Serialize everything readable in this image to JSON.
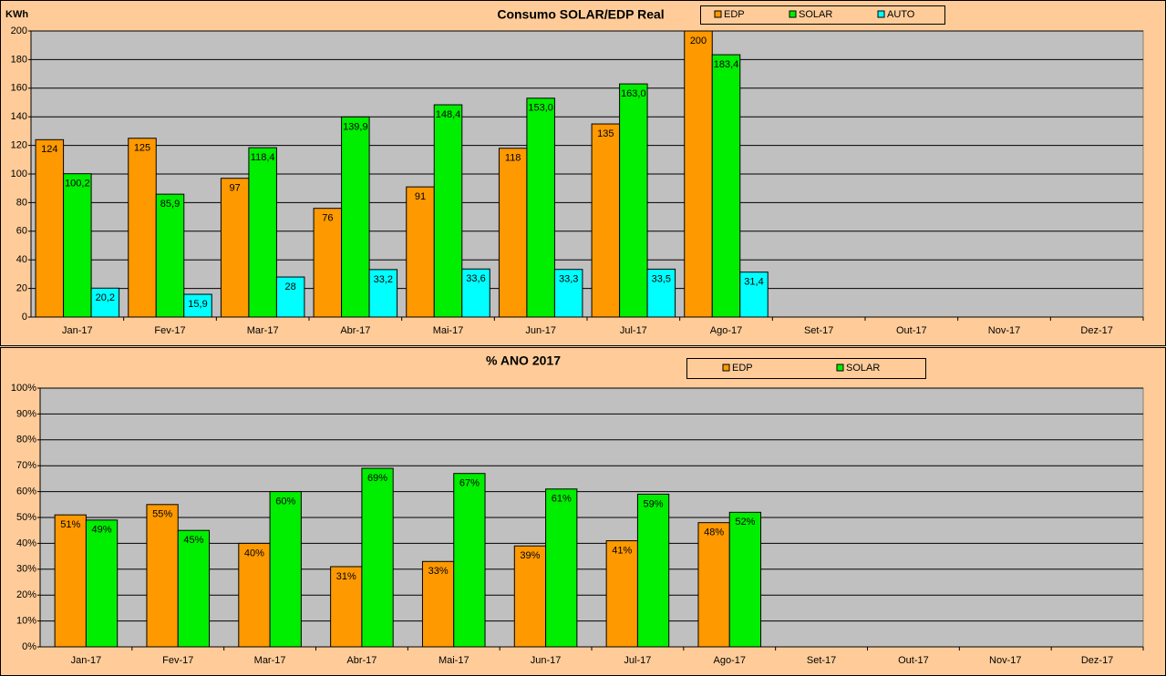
{
  "chart_data": [
    {
      "type": "bar",
      "title": "Consumo SOLAR/EDP Real",
      "y_label": "KWh",
      "categories": [
        "Jan-17",
        "Fev-17",
        "Mar-17",
        "Abr-17",
        "Mai-17",
        "Jun-17",
        "Jul-17",
        "Ago-17",
        "Set-17",
        "Out-17",
        "Nov-17",
        "Dez-17"
      ],
      "series": [
        {
          "name": "EDP",
          "color": "#ff9900",
          "values": [
            124,
            125,
            97,
            76,
            91,
            118,
            135,
            200,
            null,
            null,
            null,
            null
          ]
        },
        {
          "name": "SOLAR",
          "color": "#00ee00",
          "values": [
            100.2,
            85.9,
            118.4,
            139.9,
            148.4,
            153.0,
            163.0,
            183.4,
            null,
            null,
            null,
            null
          ],
          "value_labels": [
            "100,2",
            "85,9",
            "118,4",
            "139,9",
            "148,4",
            "153,0",
            "163,0",
            "183,4",
            null,
            null,
            null,
            null
          ]
        },
        {
          "name": "AUTO",
          "color": "#00ffff",
          "values": [
            20.2,
            15.9,
            28,
            33.2,
            33.6,
            33.3,
            33.5,
            31.4,
            null,
            null,
            null,
            null
          ],
          "value_labels": [
            "20,2",
            "15,9",
            "28",
            "33,2",
            "33,6",
            "33,3",
            "33,5",
            "31,4",
            null,
            null,
            null,
            null
          ]
        }
      ],
      "ylim": [
        0,
        200
      ],
      "yticks": [
        0,
        20,
        40,
        60,
        80,
        100,
        120,
        140,
        160,
        180,
        200
      ],
      "grid": true
    },
    {
      "type": "bar",
      "title": "% ANO 2017",
      "categories": [
        "Jan-17",
        "Fev-17",
        "Mar-17",
        "Abr-17",
        "Mai-17",
        "Jun-17",
        "Jul-17",
        "Ago-17",
        "Set-17",
        "Out-17",
        "Nov-17",
        "Dez-17"
      ],
      "series": [
        {
          "name": "EDP",
          "color": "#ff9900",
          "values": [
            51,
            55,
            40,
            31,
            33,
            39,
            41,
            48,
            null,
            null,
            null,
            null
          ],
          "value_labels": [
            "51%",
            "55%",
            "40%",
            "31%",
            "33%",
            "39%",
            "41%",
            "48%",
            null,
            null,
            null,
            null
          ]
        },
        {
          "name": "SOLAR",
          "color": "#00ee00",
          "values": [
            49,
            45,
            60,
            69,
            67,
            61,
            59,
            52,
            null,
            null,
            null,
            null
          ],
          "value_labels": [
            "49%",
            "45%",
            "60%",
            "69%",
            "67%",
            "61%",
            "59%",
            "52%",
            null,
            null,
            null,
            null
          ]
        }
      ],
      "ylim": [
        0,
        100
      ],
      "yticks": [
        {
          "value": 0,
          "label": "0%"
        },
        {
          "value": 10,
          "label": "10%"
        },
        {
          "value": 20,
          "label": "20%"
        },
        {
          "value": 30,
          "label": "30%"
        },
        {
          "value": 40,
          "label": "40%"
        },
        {
          "value": 50,
          "label": "50%"
        },
        {
          "value": 60,
          "label": "60%"
        },
        {
          "value": 70,
          "label": "70%"
        },
        {
          "value": 80,
          "label": "80%"
        },
        {
          "value": 90,
          "label": "90%"
        },
        {
          "value": 100,
          "label": "100%"
        }
      ],
      "grid": true
    }
  ]
}
